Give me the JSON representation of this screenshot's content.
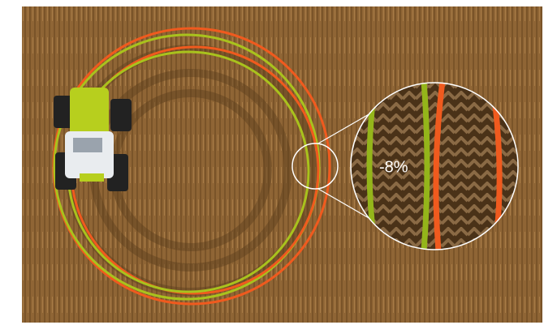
{
  "annotation": {
    "label": "-8%"
  }
}
